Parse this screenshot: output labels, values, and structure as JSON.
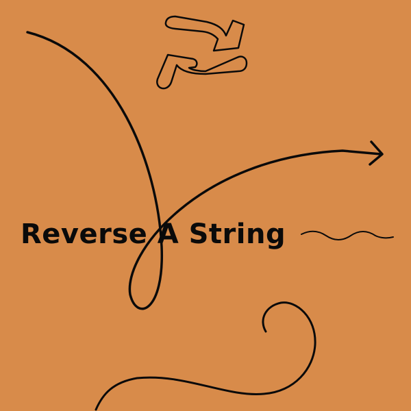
{
  "title": "Reverse A String",
  "icons": {
    "refresh": "refresh-icon",
    "arrow": "curved-arrow-icon"
  },
  "colors": {
    "background": "#d88b4a",
    "ink": "#0a0a0a"
  }
}
